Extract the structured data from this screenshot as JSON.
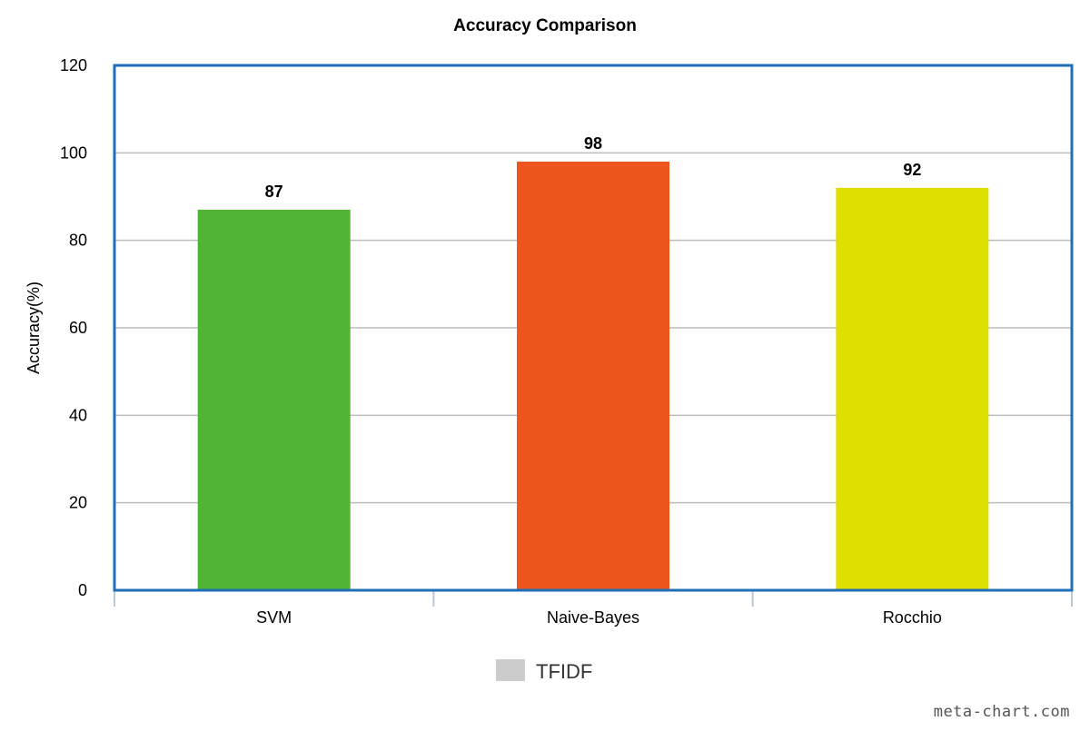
{
  "chart_data": {
    "type": "bar",
    "title": "Accuracy Comparison",
    "xlabel": "",
    "ylabel": "Accuracy(%)",
    "categories": [
      "SVM",
      "Naive-Bayes",
      "Rocchio"
    ],
    "series": [
      {
        "name": "TFIDF",
        "values": [
          87,
          98,
          92
        ],
        "colors": [
          "#52b435",
          "#ec561d",
          "#dde000"
        ]
      }
    ],
    "data_labels": [
      "87",
      "98",
      "92"
    ],
    "ylim": [
      0,
      120
    ],
    "yticks": [
      0,
      20,
      40,
      60,
      80,
      100,
      120
    ],
    "grid": true,
    "legend": {
      "position": "bottom",
      "entries": [
        "TFIDF"
      ],
      "swatch_color": "#cccccc"
    },
    "frame_color": "#1f6fb8",
    "grid_color": "#bbbbbb"
  },
  "watermark": "meta-chart.com"
}
